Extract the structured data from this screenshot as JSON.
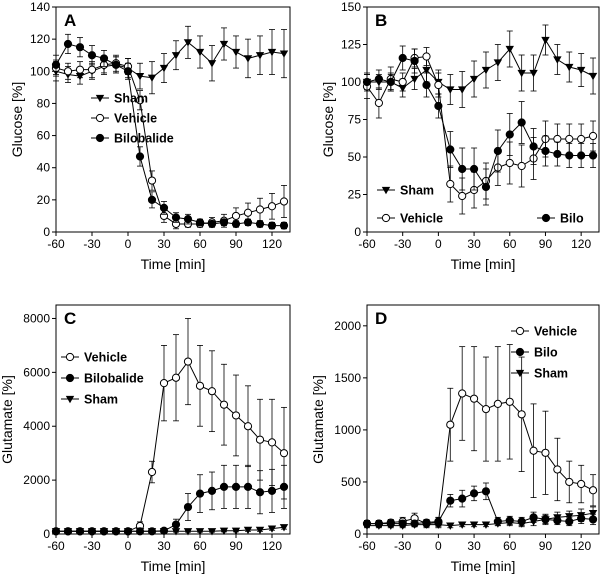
{
  "chart_data": [
    {
      "panel": "A",
      "type": "line",
      "ylabel": "Glucose [%]",
      "xlabel": "Time [min]",
      "xlim": [
        -60,
        135
      ],
      "ylim": [
        0,
        140
      ],
      "xticks": [
        -60,
        -30,
        0,
        30,
        60,
        90,
        120
      ],
      "yticks": [
        0,
        20,
        40,
        60,
        80,
        100,
        120,
        140
      ],
      "legend_position": "center",
      "series": [
        {
          "name": "Sham",
          "marker": "triangle-down",
          "x": [
            -60,
            -50,
            -40,
            -30,
            -20,
            -10,
            0,
            10,
            20,
            30,
            40,
            50,
            60,
            70,
            80,
            90,
            100,
            110,
            120,
            130
          ],
          "values": [
            100,
            98,
            97,
            100,
            103,
            104,
            102,
            97,
            96,
            102,
            110,
            118,
            112,
            105,
            117,
            112,
            108,
            110,
            112,
            111
          ],
          "errors": [
            6,
            5,
            5,
            5,
            5,
            5,
            6,
            8,
            10,
            9,
            9,
            10,
            10,
            11,
            10,
            10,
            12,
            12,
            14,
            15
          ]
        },
        {
          "name": "Vehicle",
          "marker": "circle-open",
          "x": [
            -60,
            -50,
            -40,
            -30,
            -20,
            -10,
            0,
            10,
            20,
            30,
            40,
            50,
            60,
            70,
            80,
            90,
            100,
            110,
            120,
            130
          ],
          "values": [
            102,
            100,
            101,
            101,
            104,
            105,
            103,
            82,
            32,
            10,
            5,
            5,
            5,
            6,
            7,
            10,
            12,
            14,
            16,
            19
          ],
          "errors": [
            5,
            5,
            5,
            5,
            5,
            5,
            5,
            6,
            6,
            4,
            3,
            2,
            2,
            3,
            4,
            5,
            6,
            7,
            8,
            10
          ]
        },
        {
          "name": "Bilobalide",
          "marker": "circle-filled",
          "x": [
            -60,
            -50,
            -40,
            -30,
            -20,
            -10,
            0,
            10,
            20,
            30,
            40,
            50,
            60,
            70,
            80,
            90,
            100,
            110,
            120,
            130
          ],
          "values": [
            104,
            117,
            115,
            110,
            108,
            104,
            100,
            47,
            20,
            15,
            9,
            8,
            6,
            5,
            6,
            5,
            6,
            5,
            4,
            4
          ],
          "errors": [
            6,
            6,
            6,
            6,
            5,
            5,
            5,
            6,
            5,
            4,
            3,
            3,
            2,
            2,
            2,
            2,
            2,
            2,
            2,
            2
          ]
        }
      ]
    },
    {
      "panel": "B",
      "type": "line",
      "ylabel": "Glucose [%]",
      "xlabel": "Time [min]",
      "xlim": [
        -60,
        135
      ],
      "ylim": [
        0,
        150
      ],
      "xticks": [
        -60,
        -30,
        0,
        30,
        60,
        90,
        120
      ],
      "yticks": [
        0,
        25,
        50,
        75,
        100,
        125,
        150
      ],
      "legend_position": "bottom",
      "series": [
        {
          "name": "Sham",
          "marker": "triangle-down",
          "x": [
            -60,
            -50,
            -40,
            -30,
            -20,
            -10,
            0,
            10,
            20,
            30,
            40,
            50,
            60,
            70,
            80,
            90,
            100,
            110,
            120,
            130
          ],
          "values": [
            100,
            100,
            100,
            96,
            102,
            108,
            100,
            95,
            95,
            102,
            108,
            113,
            122,
            106,
            106,
            128,
            115,
            110,
            108,
            104
          ],
          "errors": [
            5,
            5,
            5,
            6,
            7,
            8,
            8,
            10,
            12,
            12,
            12,
            12,
            12,
            12,
            12,
            10,
            10,
            10,
            11,
            12
          ]
        },
        {
          "name": "Vehicle",
          "marker": "circle-open",
          "x": [
            -60,
            -50,
            -40,
            -30,
            -20,
            -10,
            0,
            10,
            20,
            30,
            40,
            50,
            60,
            70,
            80,
            90,
            100,
            110,
            120,
            130
          ],
          "values": [
            97,
            86,
            102,
            100,
            116,
            117,
            98,
            32,
            24,
            28,
            34,
            43,
            46,
            44,
            49,
            62,
            62,
            62,
            62,
            64
          ],
          "errors": [
            8,
            10,
            8,
            6,
            6,
            6,
            8,
            12,
            12,
            12,
            12,
            12,
            14,
            14,
            14,
            12,
            10,
            10,
            10,
            10
          ]
        },
        {
          "name": "Bilo",
          "marker": "circle-filled",
          "x": [
            -60,
            -50,
            -40,
            -30,
            -20,
            -10,
            0,
            10,
            20,
            30,
            40,
            50,
            60,
            70,
            80,
            90,
            100,
            110,
            120,
            130
          ],
          "values": [
            100,
            102,
            100,
            116,
            114,
            98,
            84,
            55,
            42,
            42,
            30,
            54,
            65,
            73,
            57,
            54,
            52,
            51,
            51,
            51
          ],
          "errors": [
            6,
            6,
            6,
            8,
            8,
            8,
            8,
            12,
            14,
            14,
            12,
            14,
            14,
            14,
            12,
            10,
            8,
            8,
            8,
            8
          ]
        }
      ]
    },
    {
      "panel": "C",
      "type": "line",
      "ylabel": "Glutamate [%]",
      "xlabel": "Time [min]",
      "xlim": [
        -60,
        135
      ],
      "ylim": [
        0,
        8500
      ],
      "xticks": [
        -60,
        -30,
        0,
        30,
        60,
        90,
        120
      ],
      "yticks": [
        0,
        2000,
        4000,
        6000,
        8000
      ],
      "legend_position": "top-left",
      "series": [
        {
          "name": "Vehicle",
          "marker": "circle-open",
          "x": [
            -60,
            -50,
            -40,
            -30,
            -20,
            -10,
            0,
            10,
            20,
            30,
            40,
            50,
            60,
            70,
            80,
            90,
            100,
            110,
            120,
            130
          ],
          "values": [
            100,
            100,
            100,
            100,
            100,
            100,
            100,
            300,
            2300,
            5600,
            5800,
            6400,
            5500,
            5300,
            4800,
            4400,
            4000,
            3500,
            3400,
            3000
          ],
          "errors": [
            50,
            50,
            50,
            50,
            50,
            50,
            60,
            150,
            400,
            1400,
            1600,
            1600,
            1500,
            1500,
            1500,
            1500,
            1500,
            1500,
            1600,
            1700
          ]
        },
        {
          "name": "Bilobalide",
          "marker": "circle-filled",
          "x": [
            -60,
            -50,
            -40,
            -30,
            -20,
            -10,
            0,
            10,
            20,
            30,
            40,
            50,
            60,
            70,
            80,
            90,
            100,
            110,
            120,
            130
          ],
          "values": [
            100,
            100,
            100,
            100,
            100,
            100,
            100,
            100,
            100,
            120,
            350,
            1000,
            1500,
            1600,
            1750,
            1750,
            1750,
            1550,
            1600,
            1750
          ],
          "errors": [
            40,
            40,
            40,
            40,
            40,
            40,
            40,
            40,
            50,
            80,
            200,
            500,
            700,
            700,
            800,
            800,
            800,
            800,
            800,
            800
          ]
        },
        {
          "name": "Sham",
          "marker": "triangle-down",
          "x": [
            -60,
            -50,
            -40,
            -30,
            -20,
            -10,
            0,
            10,
            20,
            30,
            40,
            50,
            60,
            70,
            80,
            90,
            100,
            110,
            120,
            130
          ],
          "values": [
            100,
            100,
            100,
            100,
            100,
            100,
            100,
            100,
            100,
            100,
            100,
            100,
            100,
            100,
            120,
            120,
            150,
            150,
            200,
            250
          ],
          "errors": [
            30,
            30,
            30,
            30,
            30,
            30,
            30,
            30,
            30,
            30,
            30,
            30,
            30,
            30,
            40,
            40,
            50,
            50,
            60,
            70
          ]
        }
      ]
    },
    {
      "panel": "D",
      "type": "line",
      "ylabel": "Glutamate [%]",
      "xlabel": "Time [min]",
      "xlim": [
        -60,
        135
      ],
      "ylim": [
        0,
        2200
      ],
      "xticks": [
        -60,
        -30,
        0,
        30,
        60,
        90,
        120
      ],
      "yticks": [
        0,
        500,
        1000,
        1500,
        2000
      ],
      "legend_position": "top-right",
      "series": [
        {
          "name": "Vehicle",
          "marker": "circle-open",
          "x": [
            -60,
            -50,
            -40,
            -30,
            -20,
            -10,
            0,
            10,
            20,
            30,
            40,
            50,
            60,
            70,
            80,
            90,
            100,
            110,
            120,
            130
          ],
          "values": [
            100,
            100,
            110,
            120,
            150,
            100,
            110,
            1050,
            1350,
            1300,
            1200,
            1250,
            1270,
            1150,
            800,
            780,
            620,
            500,
            480,
            420
          ],
          "errors": [
            30,
            30,
            30,
            40,
            50,
            40,
            50,
            350,
            450,
            500,
            500,
            550,
            550,
            550,
            450,
            400,
            300,
            200,
            180,
            150
          ]
        },
        {
          "name": "Bilo",
          "marker": "circle-filled",
          "x": [
            -60,
            -50,
            -40,
            -30,
            -20,
            -10,
            0,
            10,
            20,
            30,
            40,
            50,
            60,
            70,
            80,
            90,
            100,
            110,
            120,
            130
          ],
          "values": [
            100,
            100,
            100,
            100,
            100,
            110,
            120,
            320,
            340,
            390,
            410,
            120,
            130,
            120,
            160,
            140,
            130,
            120,
            150,
            140
          ],
          "errors": [
            30,
            30,
            30,
            30,
            30,
            30,
            40,
            60,
            80,
            70,
            80,
            40,
            40,
            40,
            50,
            50,
            40,
            40,
            50,
            50
          ]
        },
        {
          "name": "Sham",
          "marker": "triangle-down",
          "x": [
            -60,
            -50,
            -40,
            -30,
            -20,
            -10,
            0,
            10,
            20,
            30,
            40,
            50,
            60,
            70,
            80,
            90,
            100,
            110,
            120,
            130
          ],
          "values": [
            80,
            80,
            80,
            80,
            90,
            90,
            90,
            80,
            90,
            90,
            90,
            100,
            110,
            100,
            120,
            140,
            160,
            170,
            180,
            200
          ],
          "errors": [
            20,
            20,
            20,
            20,
            20,
            20,
            20,
            20,
            20,
            20,
            20,
            20,
            30,
            30,
            40,
            40,
            50,
            50,
            60,
            60
          ]
        }
      ]
    }
  ]
}
